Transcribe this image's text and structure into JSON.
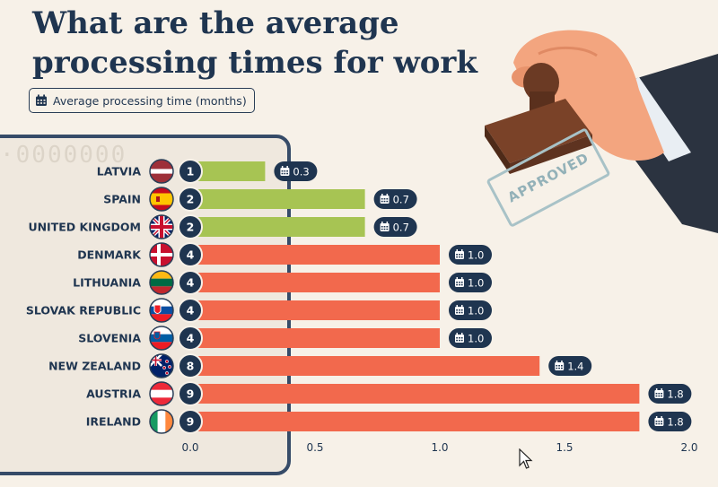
{
  "title": "What are the average processing times for work visas?",
  "legend": {
    "label": "Average processing time (months)",
    "icon": "calendar-icon"
  },
  "stamp": {
    "text": "APPROVED"
  },
  "colors": {
    "green": "#a7c453",
    "orange": "#f2694d",
    "navy": "#1f3550",
    "background": "#f7f1e8"
  },
  "chart_data": {
    "type": "bar",
    "orientation": "horizontal",
    "title": "What are the average processing times for work visas?",
    "xlabel": "",
    "ylabel": "",
    "xlim": [
      0,
      2.0
    ],
    "xticks": [
      "0.0",
      "0.5",
      "1.0",
      "1.5",
      "2.0"
    ],
    "grid": false,
    "categories": [
      "LATVIA",
      "SPAIN",
      "UNITED KINGDOM",
      "DENMARK",
      "LITHUANIA",
      "SLOVAK REPUBLIC",
      "SLOVENIA",
      "NEW ZEALAND",
      "AUSTRIA",
      "IRELAND"
    ],
    "ranks": [
      "1",
      "2",
      "2",
      "4",
      "4",
      "4",
      "4",
      "8",
      "9",
      "9"
    ],
    "values": [
      0.3,
      0.7,
      0.7,
      1.0,
      1.0,
      1.0,
      1.0,
      1.4,
      1.8,
      1.8
    ],
    "value_labels": [
      "0.3",
      "0.7",
      "0.7",
      "1.0",
      "1.0",
      "1.0",
      "1.0",
      "1.4",
      "1.8",
      "1.8"
    ],
    "bar_colors": [
      "green",
      "green",
      "green",
      "orange",
      "orange",
      "orange",
      "orange",
      "orange",
      "orange",
      "orange"
    ],
    "flags": [
      "latvia",
      "spain",
      "united-kingdom",
      "denmark",
      "lithuania",
      "slovakia",
      "slovenia",
      "new-zealand",
      "austria",
      "ireland"
    ]
  }
}
